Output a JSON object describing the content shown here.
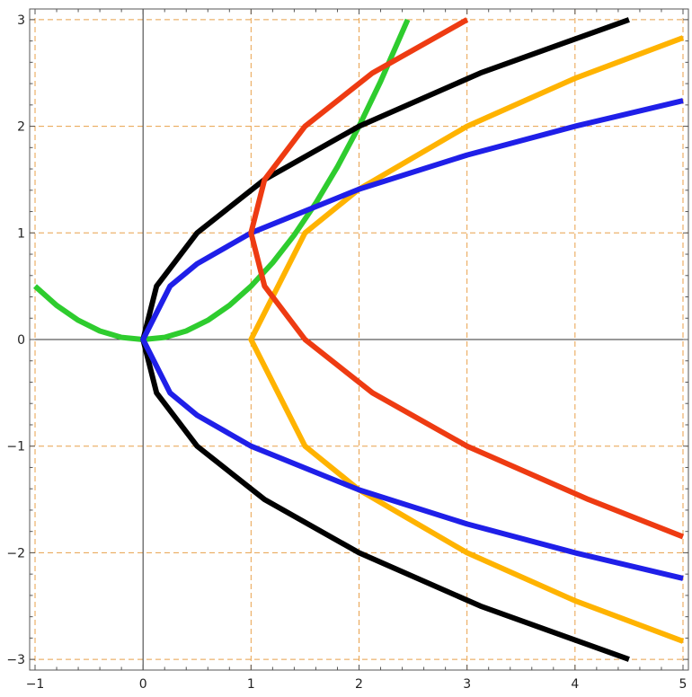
{
  "chart_data": {
    "type": "line",
    "title": "",
    "xlabel": "",
    "ylabel": "",
    "xlim": [
      -1.05,
      5.05
    ],
    "ylim": [
      -3.1,
      3.1
    ],
    "grid": true,
    "grid_style": "dashed",
    "grid_color": "#e8a04a",
    "x_ticks": [
      -1,
      0,
      1,
      2,
      3,
      4,
      5
    ],
    "y_ticks": [
      -3,
      -2,
      -1,
      0,
      1,
      2,
      3
    ],
    "x_tick_labels": [
      "−1",
      "0",
      "1",
      "2",
      "3",
      "4",
      "5"
    ],
    "y_tick_labels": [
      "−3",
      "−2",
      "−1",
      "0",
      "1",
      "2",
      "3"
    ],
    "series": [
      {
        "color": "#2ecc2e",
        "x": [
          -1.0,
          -0.8,
          -0.6,
          -0.4,
          -0.2,
          0.0,
          0.2,
          0.4,
          0.6,
          0.8,
          1.0,
          1.2,
          1.4,
          1.6,
          1.8,
          2.0,
          2.2,
          2.45
        ],
        "y": [
          0.5,
          0.32,
          0.18,
          0.08,
          0.02,
          0.0,
          0.02,
          0.08,
          0.18,
          0.32,
          0.5,
          0.72,
          0.98,
          1.28,
          1.62,
          2.0,
          2.42,
          3.0
        ]
      },
      {
        "color": "#000000",
        "x": [
          4.5,
          3.125,
          2.0,
          1.125,
          0.5,
          0.125,
          0.0,
          0.125,
          0.5,
          1.125,
          2.0,
          3.125,
          4.5
        ],
        "y": [
          -3.0,
          -2.5,
          -2.0,
          -1.5,
          -1.0,
          -0.5,
          0.0,
          0.5,
          1.0,
          1.5,
          2.0,
          2.5,
          3.0
        ]
      },
      {
        "color": "#ffb300",
        "x": [
          5.0,
          4.0,
          3.0,
          2.0,
          1.5,
          1.0,
          1.5,
          2.0,
          3.0,
          4.0,
          5.0
        ],
        "y": [
          -2.83,
          -2.45,
          -2.0,
          -1.41,
          -1.0,
          0.0,
          1.0,
          1.41,
          2.0,
          2.45,
          2.83
        ]
      },
      {
        "color": "#1f1fe8",
        "x": [
          5.0,
          4.0,
          3.0,
          2.0,
          1.0,
          0.5,
          0.25,
          0.0,
          0.25,
          0.5,
          1.0,
          2.0,
          3.0,
          4.0,
          5.0
        ],
        "y": [
          -2.24,
          -2.0,
          -1.73,
          -1.41,
          -1.0,
          -0.71,
          -0.5,
          0.0,
          0.5,
          0.71,
          1.0,
          1.41,
          1.73,
          2.0,
          2.24
        ]
      },
      {
        "color": "#ee3b12",
        "x": [
          5.0,
          4.125,
          3.0,
          2.125,
          1.5,
          1.125,
          1.0,
          1.125,
          1.5,
          2.125,
          3.0
        ],
        "y": [
          -1.85,
          -1.5,
          -1.0,
          -0.5,
          0.0,
          0.5,
          1.0,
          1.5,
          2.0,
          2.5,
          3.0
        ]
      }
    ]
  }
}
